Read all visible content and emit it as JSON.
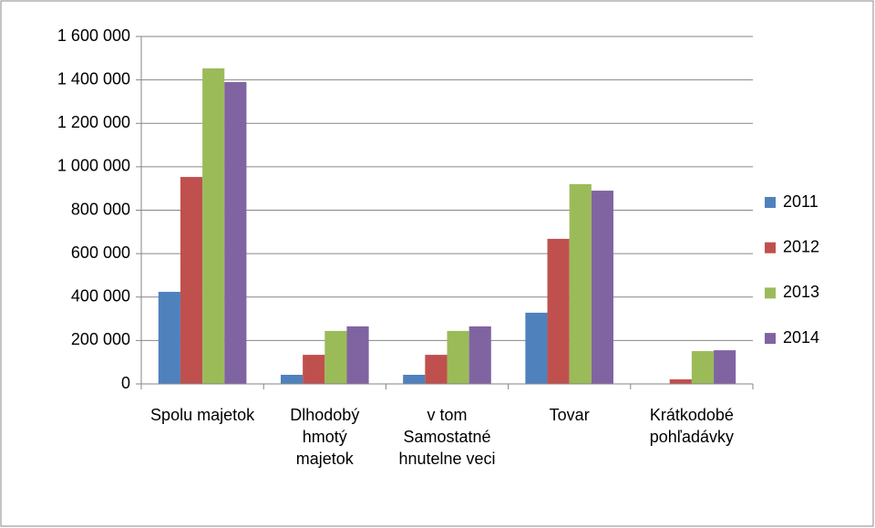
{
  "chart_data": {
    "type": "bar",
    "categories": [
      "Spolu majetok",
      "Dlhodobý hmotý majetok",
      "v tom Samostatné hnutelne veci",
      "Tovar",
      "Krátkodobé pohľadávky"
    ],
    "series": [
      {
        "name": "2011",
        "color": "#4f81bd",
        "values": [
          424000,
          42000,
          42000,
          328000,
          0
        ]
      },
      {
        "name": "2012",
        "color": "#c0504d",
        "values": [
          953000,
          134000,
          134000,
          668000,
          21000
        ]
      },
      {
        "name": "2013",
        "color": "#9bbb59",
        "values": [
          1453000,
          244000,
          244000,
          920000,
          151000
        ]
      },
      {
        "name": "2014",
        "color": "#8064a2",
        "values": [
          1390000,
          265000,
          265000,
          890000,
          155000
        ]
      }
    ],
    "ylim": [
      0,
      1600000
    ],
    "yticks": [
      0,
      {
        "value": 200000,
        "label": "200 000"
      },
      {
        "value": 400000,
        "label": "400 000"
      },
      {
        "value": 600000,
        "label": "600 000"
      },
      {
        "value": 800000,
        "label": "800 000"
      },
      {
        "value": 1000000,
        "label": "1 000 000"
      },
      {
        "value": 1200000,
        "label": "1 200 000"
      },
      {
        "value": 1400000,
        "label": "1 400 000"
      },
      {
        "value": 1600000,
        "label": "1 600 000"
      }
    ],
    "grid": true,
    "legend": "right"
  }
}
